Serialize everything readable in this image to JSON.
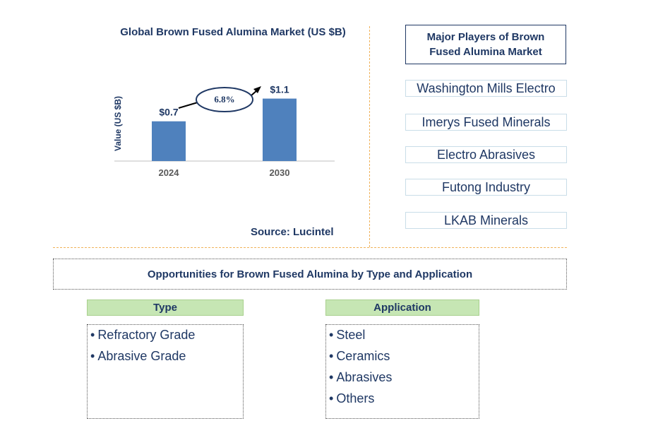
{
  "chart_data": {
    "type": "bar",
    "title": "Global Brown Fused Alumina Market (US $B)",
    "ylabel": "Value (US $B)",
    "xlabel": "",
    "categories": [
      "2024",
      "2030"
    ],
    "values": [
      0.7,
      1.1
    ],
    "data_labels": [
      "$0.7",
      "$1.1"
    ],
    "ylim": [
      0,
      1.3
    ],
    "cagr_label": "6.8%",
    "bar_color": "#4f81bd",
    "grid": false
  },
  "source": "Source: Lucintel",
  "players": {
    "title": "Major Players of Brown Fused Alumina Market",
    "items": [
      "Washington Mills Electro",
      "Imerys Fused Minerals",
      "Electro Abrasives",
      "Futong Industry",
      "LKAB Minerals"
    ]
  },
  "opportunities": {
    "title": "Opportunities for Brown Fused Alumina by Type and Application",
    "type": {
      "header": "Type",
      "items": [
        "Refractory Grade",
        "Abrasive Grade"
      ]
    },
    "application": {
      "header": "Application",
      "items": [
        "Steel",
        "Ceramics",
        "Abrasives",
        "Others"
      ]
    }
  }
}
